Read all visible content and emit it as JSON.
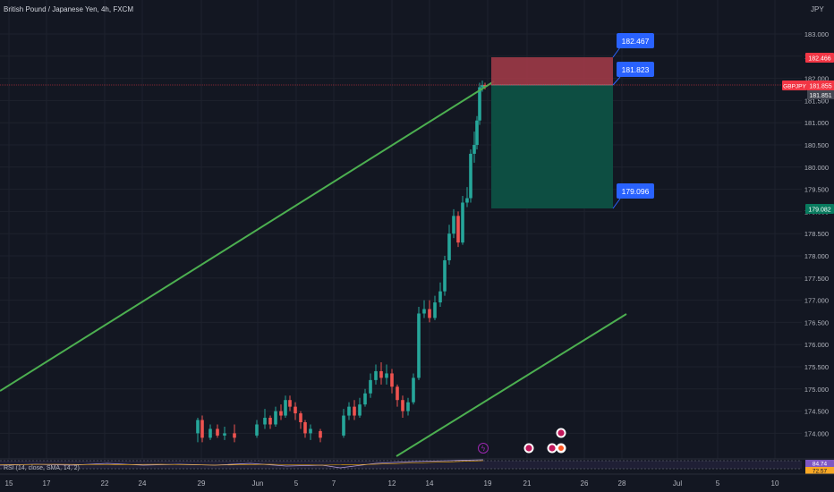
{
  "header": {
    "symbol_title": "British Pound / Japanese Yen, 4h, FXCM"
  },
  "axis": {
    "currency": "JPY",
    "price_ticks": [
      "183.000",
      "182.500",
      "182.000",
      "181.500",
      "181.000",
      "180.500",
      "180.000",
      "179.500",
      "179.000",
      "178.500",
      "178.000",
      "177.500",
      "177.000",
      "176.500",
      "176.000",
      "175.500",
      "175.000",
      "174.500",
      "174.000"
    ],
    "price_tick_values": [
      183.0,
      182.5,
      182.0,
      181.5,
      181.0,
      180.5,
      180.0,
      179.5,
      179.0,
      178.5,
      178.0,
      177.5,
      177.0,
      176.5,
      176.0,
      175.5,
      175.0,
      174.5,
      174.0
    ],
    "date_ticks": [
      {
        "label": "15",
        "pos": 10
      },
      {
        "label": "17",
        "pos": 52
      },
      {
        "label": "22",
        "pos": 117
      },
      {
        "label": "24",
        "pos": 159
      },
      {
        "label": "29",
        "pos": 225
      },
      {
        "label": "Jun",
        "pos": 288
      },
      {
        "label": "5",
        "pos": 331
      },
      {
        "label": "7",
        "pos": 373
      },
      {
        "label": "12",
        "pos": 438
      },
      {
        "label": "14",
        "pos": 480
      },
      {
        "label": "19",
        "pos": 545
      },
      {
        "label": "21",
        "pos": 589
      },
      {
        "label": "26",
        "pos": 653
      },
      {
        "label": "28",
        "pos": 695
      },
      {
        "label": "Jul",
        "pos": 757
      },
      {
        "label": "5",
        "pos": 802
      },
      {
        "label": "10",
        "pos": 866
      }
    ]
  },
  "price_badges": {
    "stop": {
      "label": "182.466",
      "value": 182.466,
      "color": "#f23645"
    },
    "symbol": {
      "label": "GBPJPY",
      "color": "#f23645"
    },
    "last": {
      "label": "181.855",
      "value": 181.855
    },
    "last_secondary": {
      "label": "181.851",
      "value": 181.851
    },
    "target": {
      "label": "179.082",
      "value": 179.082,
      "color": "#087a5e"
    }
  },
  "position": {
    "entry": {
      "label": "181.823",
      "value": 181.823
    },
    "stop": {
      "label": "182.467",
      "value": 182.467
    },
    "target": {
      "label": "179.096",
      "value": 179.096
    },
    "stop_color": "#b2404e",
    "target_color": "#0d5145"
  },
  "indicator": {
    "label": "RSI (14, close, SMA, 14, 2)",
    "value_label": "84.74",
    "value2_label": "72.57"
  },
  "colors": {
    "bg": "#131722",
    "grid": "#1e222d",
    "up": "#26a69a",
    "down": "#ef5350",
    "trendline": "#4caf50",
    "badge_blue": "#2962ff",
    "text": "#b2b5be"
  }
}
